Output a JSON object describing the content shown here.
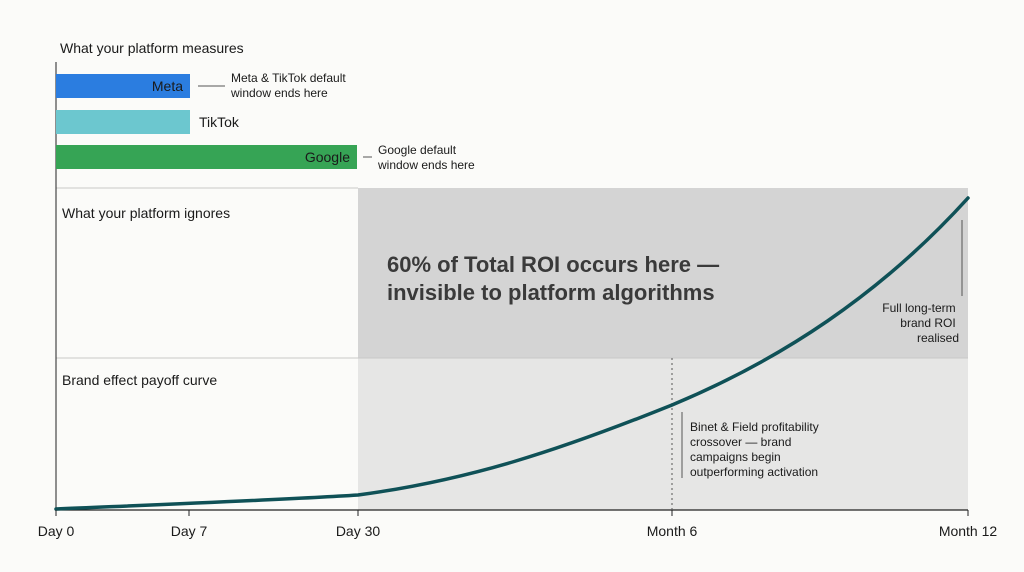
{
  "chart_data": {
    "type": "area",
    "sections": {
      "measures": "What your platform measures",
      "ignores": "What your platform ignores",
      "payoff": "Brand effect payoff curve"
    },
    "windows": [
      {
        "platform": "Meta",
        "label": "Meta",
        "end": "Day 7",
        "color": "#2b7de0",
        "label_color": "#ffffff"
      },
      {
        "platform": "TikTok",
        "label": "TikTok",
        "end": "Day 7",
        "color": "#6cc7cf",
        "label_color": "#1a1a1a"
      },
      {
        "platform": "Google",
        "label": "Google",
        "end": "Day 30",
        "color": "#36a455",
        "label_color": "#ffffff"
      }
    ],
    "window_notes": [
      {
        "lines": [
          "Meta & TikTok default",
          "window ends here"
        ]
      },
      {
        "lines": [
          "Google default",
          "window ends here"
        ]
      }
    ],
    "x_ticks": [
      "Day 0",
      "Day 7",
      "Day 30",
      "Month 6",
      "Month 12"
    ],
    "x_tick_days": [
      0,
      7,
      30,
      180,
      365
    ],
    "highlight": {
      "from": "Day 30",
      "to": "Month 12",
      "text_lines": [
        "60% of Total ROI occurs here —",
        "invisible to platform algorithms"
      ]
    },
    "annotations": {
      "crossover": [
        "Binet & Field profitability",
        "crossover — brand",
        "campaigns begin",
        "outperforming activation"
      ],
      "full_roi": [
        "Full long-term",
        "brand ROI",
        "realised"
      ]
    },
    "curve": {
      "description_values_relative_height": [
        {
          "x": "Day 0",
          "y": 0.0
        },
        {
          "x": "Day 7",
          "y": 0.01
        },
        {
          "x": "Day 30",
          "y": 0.04
        },
        {
          "x": "Month 6",
          "y": 0.35
        },
        {
          "x": "Month 12",
          "y": 1.0
        }
      ],
      "color": "#0f5157"
    },
    "colors": {
      "ignored_region": "#d4d4d4",
      "payoff_region": "#e6e6e5",
      "divider": "#c8c8c8",
      "axis": "#222222"
    }
  }
}
